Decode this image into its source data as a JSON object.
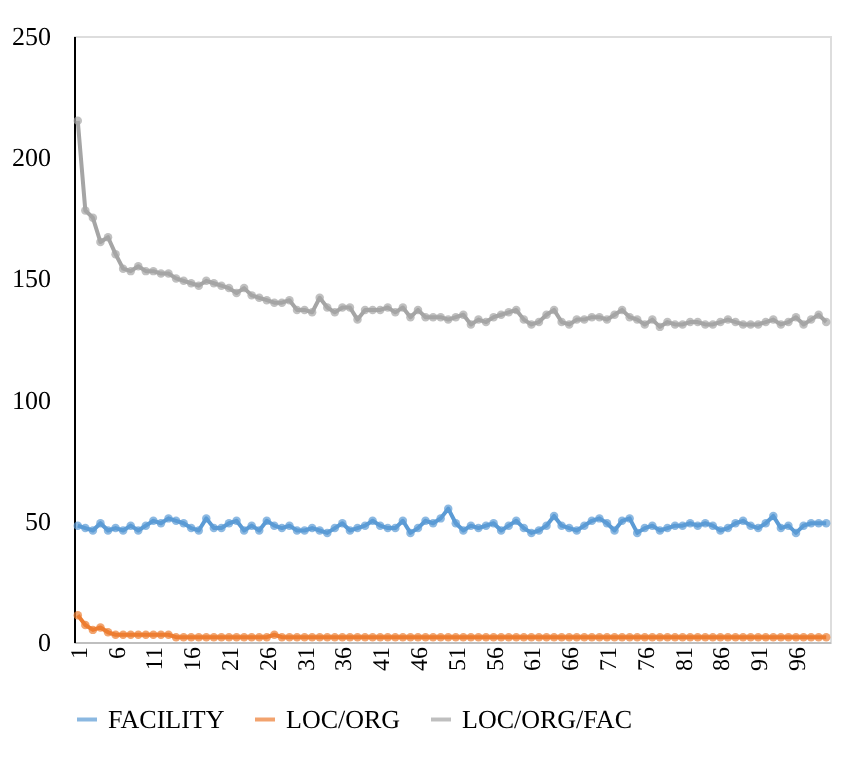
{
  "chart_data": {
    "type": "line",
    "categories": [
      "1",
      null,
      null,
      null,
      null,
      "6",
      null,
      null,
      null,
      null,
      "11",
      null,
      null,
      null,
      null,
      "16",
      null,
      null,
      null,
      null,
      "21",
      null,
      null,
      null,
      null,
      "26",
      null,
      null,
      null,
      null,
      "31",
      null,
      null,
      null,
      null,
      "36",
      null,
      null,
      null,
      null,
      "41",
      null,
      null,
      null,
      null,
      "46",
      null,
      null,
      null,
      null,
      "51",
      null,
      null,
      null,
      null,
      "56",
      null,
      null,
      null,
      null,
      "61",
      null,
      null,
      null,
      null,
      "66",
      null,
      null,
      null,
      null,
      "71",
      null,
      null,
      null,
      null,
      "76",
      null,
      null,
      null,
      null,
      "81",
      null,
      null,
      null,
      null,
      "86",
      null,
      null,
      null,
      null,
      "91",
      null,
      null,
      null,
      null,
      "96",
      null,
      null,
      null,
      null
    ],
    "series": [
      {
        "name": "FACILITY",
        "color": "#5b9bd5",
        "values": [
          48,
          47,
          46,
          49,
          46,
          47,
          46,
          48,
          46,
          48,
          50,
          49,
          51,
          50,
          49,
          47,
          46,
          51,
          47,
          47,
          49,
          50,
          46,
          48,
          46,
          50,
          48,
          47,
          48,
          46,
          46,
          47,
          46,
          45,
          47,
          49,
          46,
          47,
          48,
          50,
          48,
          47,
          47,
          50,
          45,
          47,
          50,
          49,
          51,
          55,
          49,
          46,
          48,
          47,
          48,
          49,
          46,
          48,
          50,
          47,
          45,
          46,
          48,
          52,
          48,
          47,
          46,
          48,
          50,
          51,
          49,
          46,
          50,
          51,
          45,
          47,
          48,
          46,
          47,
          48,
          48,
          49,
          48,
          49,
          48,
          46,
          47,
          49,
          50,
          48,
          47,
          49,
          52,
          47,
          48,
          45,
          48,
          49,
          49,
          49
        ]
      },
      {
        "name": "LOC/ORG",
        "color": "#ed7d31",
        "values": [
          11,
          7,
          5,
          6,
          4,
          3,
          3,
          3,
          3,
          3,
          3,
          3,
          3,
          2,
          2,
          2,
          2,
          2,
          2,
          2,
          2,
          2,
          2,
          2,
          2,
          2,
          3,
          2,
          2,
          2,
          2,
          2,
          2,
          2,
          2,
          2,
          2,
          2,
          2,
          2,
          2,
          2,
          2,
          2,
          2,
          2,
          2,
          2,
          2,
          2,
          2,
          2,
          2,
          2,
          2,
          2,
          2,
          2,
          2,
          2,
          2,
          2,
          2,
          2,
          2,
          2,
          2,
          2,
          2,
          2,
          2,
          2,
          2,
          2,
          2,
          2,
          2,
          2,
          2,
          2,
          2,
          2,
          2,
          2,
          2,
          2,
          2,
          2,
          2,
          2,
          2,
          2,
          2,
          2,
          2,
          2,
          2,
          2,
          2,
          2
        ]
      },
      {
        "name": "LOC/ORG/FAC",
        "color": "#a5a5a5",
        "values": [
          215,
          178,
          175,
          165,
          167,
          160,
          154,
          153,
          155,
          153,
          153,
          152,
          152,
          150,
          149,
          148,
          147,
          149,
          148,
          147,
          146,
          144,
          146,
          143,
          142,
          141,
          140,
          140,
          141,
          137,
          137,
          136,
          142,
          138,
          136,
          138,
          138,
          133,
          137,
          137,
          137,
          138,
          136,
          138,
          134,
          137,
          134,
          134,
          134,
          133,
          134,
          135,
          131,
          133,
          132,
          134,
          135,
          136,
          137,
          133,
          131,
          132,
          135,
          137,
          132,
          131,
          133,
          133,
          134,
          134,
          133,
          135,
          137,
          134,
          133,
          131,
          133,
          130,
          132,
          131,
          131,
          132,
          132,
          131,
          131,
          132,
          133,
          132,
          131,
          131,
          131,
          132,
          133,
          131,
          132,
          134,
          131,
          133,
          135,
          132
        ]
      }
    ],
    "ylim": [
      0,
      250
    ],
    "yticks": [
      0,
      50,
      100,
      150,
      200,
      250
    ],
    "grid": false,
    "legend": "bottom",
    "marker": "circle",
    "line_style": "solid"
  }
}
